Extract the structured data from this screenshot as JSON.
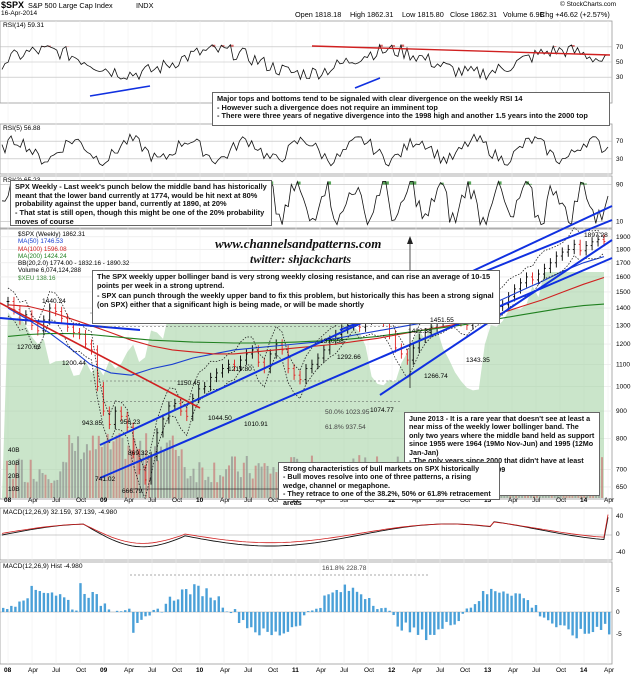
{
  "header": {
    "symbol": "$SPX",
    "name": "S&P 500 Large Cap Index",
    "exchange": "INDX",
    "date": "16-Apr-2014",
    "open": "Open 1818.18",
    "high": "High 1862.31",
    "low": "Low 1815.80",
    "close": "Close 1862.31",
    "volume": "Volume 6.9B",
    "chg": "Chg +46.62 (+2.57%)",
    "credit": "© StockCharts.com"
  },
  "panels": {
    "rsi14": {
      "label": "RSI(14) 59.31",
      "levels": [
        "70",
        "30"
      ]
    },
    "rsi5": {
      "label": "RSI(5) 56.88",
      "levels": [
        "70",
        "30"
      ]
    },
    "rsi2": {
      "label": "RSI(2) 65.23",
      "levels": [
        "90",
        "10"
      ]
    },
    "price_legend": [
      "$SPX (Weekly) 1862.31",
      "MA(50) 1746.53",
      "MA(100) 1596.08",
      "MA(200) 1424.24",
      "BB(20,2.0) 1774.00 - 1832.16 - 1890.32",
      "Volume 6,074,124,288",
      "$XEU 138.16"
    ],
    "macd": {
      "label": "MACD(12,26,9) 32.159, 37.139, -4.980"
    },
    "hist": {
      "label": "MACD(12,26,9) Hist -4.980"
    }
  },
  "watermark": {
    "site": "www.channelsandpatterns.com",
    "twitter": "twitter: shjackcharts"
  },
  "annotations": {
    "rsi": [
      "Major tops and bottoms tend to be signaled with clear divergence on the weekly RSI 14",
      "- However such a divergence does not require an imminent top",
      "- There were three years of negative divergence into the 1998 high and another 1.5 years into the 2000 top"
    ],
    "weekly": [
      "SPX Weekly - Last week's punch below the middle band has historically meant that the lower band currently at 1774, would be hit next at 80% probability against the upper band, currently at 1890, at 20%",
      "- That stat is still open, though this might be one of the 20% probability moves of course"
    ],
    "bollinger": [
      "The SPX weekly upper bollinger band is very strong weekly closing resistance, and can rise an average of 10-15 points per week in a strong uptrend.",
      "- SPX can punch through the weekly upper band to fix this problem, but historically this has been a strong signal (on SPX) either that a significant high is being made, or will be made shortly"
    ],
    "june2013": [
      "June 2013 - It is a rare year that doesn't see at least a near miss of the weekly lower bollinger band. The only two years where the middle band held as support since 1955 were 1964 (19Mo Nov-Jun) and 1995 (12Mo Jan-Jan)",
      "- The only years since 2000 that didn't have at least two hits were 2003 and 2009"
    ],
    "bull": [
      "Strong characteristics of bull markets on SPX historically",
      "- Bull moves resolve into one of three patterns, a rising wedge, channel or megaphone.",
      "- They retrace to one of the 38.2%, 50% or 61.8% retracement areas"
    ]
  },
  "price_labels": {
    "l1440": "1440.24",
    "l1270": "1270.05",
    "l1200": "1200.44",
    "l943": "943.85",
    "l956": "956.23",
    "l869": "869.32",
    "l741": "741.02",
    "l666": "666.79",
    "l1219": "1219.80",
    "l1150": "1150.45",
    "l1044": "1044.50",
    "l1010": "1010.91",
    "l1370": "1370.58",
    "l1292": "1292.66",
    "l1074": "1074.77",
    "l1422": "1422.38",
    "l1451": "1451.55",
    "l1266": "1266.74",
    "l1343": "1343.35",
    "l1897": "1897.28",
    "fib50": "50.0% 1023.95",
    "fib618": "61.8% 937.54",
    "fib2": "161.8% 228.78"
  },
  "axes": {
    "price_ticks": [
      "1900",
      "1800",
      "1700",
      "1600",
      "1500",
      "1400",
      "1300",
      "1200",
      "1100",
      "1000",
      "900",
      "800",
      "700",
      "650"
    ],
    "volume_ticks": [
      "40B",
      "30B",
      "20B",
      "10B"
    ],
    "rsi_ticks": [
      "70",
      "50",
      "30"
    ],
    "x_labels": [
      "08",
      "Apr",
      "Jul",
      "Oct",
      "09",
      "Apr",
      "Jul",
      "Oct",
      "10",
      "Apr",
      "Jul",
      "Oct",
      "11",
      "Apr",
      "Jul",
      "Oct",
      "12",
      "Apr",
      "Jul",
      "Oct",
      "13",
      "Apr",
      "Jul",
      "Oct",
      "14",
      "Apr"
    ]
  },
  "chart_data": {
    "type": "line",
    "title": "$SPX S&P 500 Large Cap Index",
    "period": "Weekly",
    "x_labels": [
      "08",
      "Apr",
      "Jul",
      "Oct",
      "09",
      "Apr",
      "Jul",
      "Oct",
      "10",
      "Apr",
      "Jul",
      "Oct",
      "11",
      "Apr",
      "Jul",
      "Oct",
      "12",
      "Apr",
      "Jul",
      "Oct",
      "13",
      "Apr",
      "Jul",
      "Oct",
      "14",
      "Apr"
    ],
    "ylim": [
      620,
      1940
    ],
    "series": [
      {
        "name": "$SPX (Weekly)",
        "values": [
          1440,
          1390,
          1330,
          1360,
          1300,
          1270,
          1330,
          1400,
          1380,
          1340,
          1290,
          1260,
          1250,
          1200,
          1170,
          1000,
          900,
          850,
          900,
          880,
          840,
          750,
          700,
          670,
          741,
          820,
          870,
          920,
          930,
          900,
          880,
          950,
          990,
          1000,
          1040,
          1060,
          1080,
          1100,
          1090,
          1120,
          1150,
          1170,
          1110,
          1080,
          1150,
          1200,
          1170,
          1080,
          1050,
          1030,
          1080,
          1100,
          1130,
          1170,
          1220,
          1250,
          1280,
          1300,
          1330,
          1290,
          1330,
          1360,
          1340,
          1320,
          1250,
          1180,
          1150,
          1120,
          1180,
          1230,
          1260,
          1290,
          1320,
          1360,
          1390,
          1380,
          1320,
          1300,
          1350,
          1400,
          1430,
          1440,
          1410,
          1420,
          1470,
          1520,
          1560,
          1600,
          1580,
          1620,
          1660,
          1700,
          1750,
          1780,
          1800,
          1840,
          1790,
          1830,
          1860,
          1880,
          1862
        ]
      },
      {
        "name": "MA(50)",
        "values": [
          1400,
          1330,
          1260,
          1180,
          1100,
          1060,
          1050,
          1080,
          1100,
          1130,
          1150,
          1170,
          1180,
          1190,
          1200,
          1210,
          1230,
          1250,
          1270,
          1290,
          1310,
          1330,
          1360,
          1400,
          1450,
          1510,
          1570,
          1640,
          1700,
          1746
        ]
      },
      {
        "name": "MA(100)",
        "values": [
          1420,
          1410,
          1380,
          1340,
          1300,
          1260,
          1220,
          1190,
          1170,
          1160,
          1150,
          1150,
          1160,
          1170,
          1180,
          1190,
          1200,
          1215,
          1230,
          1250,
          1270,
          1290,
          1310,
          1340,
          1370,
          1410,
          1450,
          1500,
          1550,
          1596
        ]
      },
      {
        "name": "MA(200)",
        "values": [
          1240,
          1250,
          1255,
          1255,
          1250,
          1240,
          1230,
          1220,
          1215,
          1210,
          1208,
          1205,
          1205,
          1207,
          1210,
          1215,
          1220,
          1230,
          1240,
          1255,
          1270,
          1285,
          1300,
          1320,
          1340,
          1360,
          1380,
          1400,
          1415,
          1424
        ]
      }
    ],
    "bollinger": {
      "lower": 1774.0,
      "middle": 1832.16,
      "upper": 1890.32
    },
    "macd": {
      "macd": 32.159,
      "signal": 37.139,
      "hist": -4.98
    },
    "rsi14": 59.31,
    "rsi5": 56.88,
    "rsi2": 65.23,
    "key_levels": [
      1440.24,
      1270.05,
      1200.44,
      943.85,
      956.23,
      869.32,
      741.02,
      666.79,
      1219.8,
      1150.45,
      1044.5,
      1010.91,
      1370.58,
      1292.66,
      1074.77,
      1422.38,
      1451.55,
      1266.74,
      1343.35,
      1897.28
    ]
  },
  "colors": {
    "up": "#000000",
    "down": "#e02020",
    "ma50": "#1a3fd0",
    "ma100": "#d02020",
    "ma200": "#208020",
    "xeu": "#9fcf9f",
    "trend": "#1030e0",
    "macd_hist": "#4aa0d8",
    "rsi_fill": "#2f8f2f"
  }
}
